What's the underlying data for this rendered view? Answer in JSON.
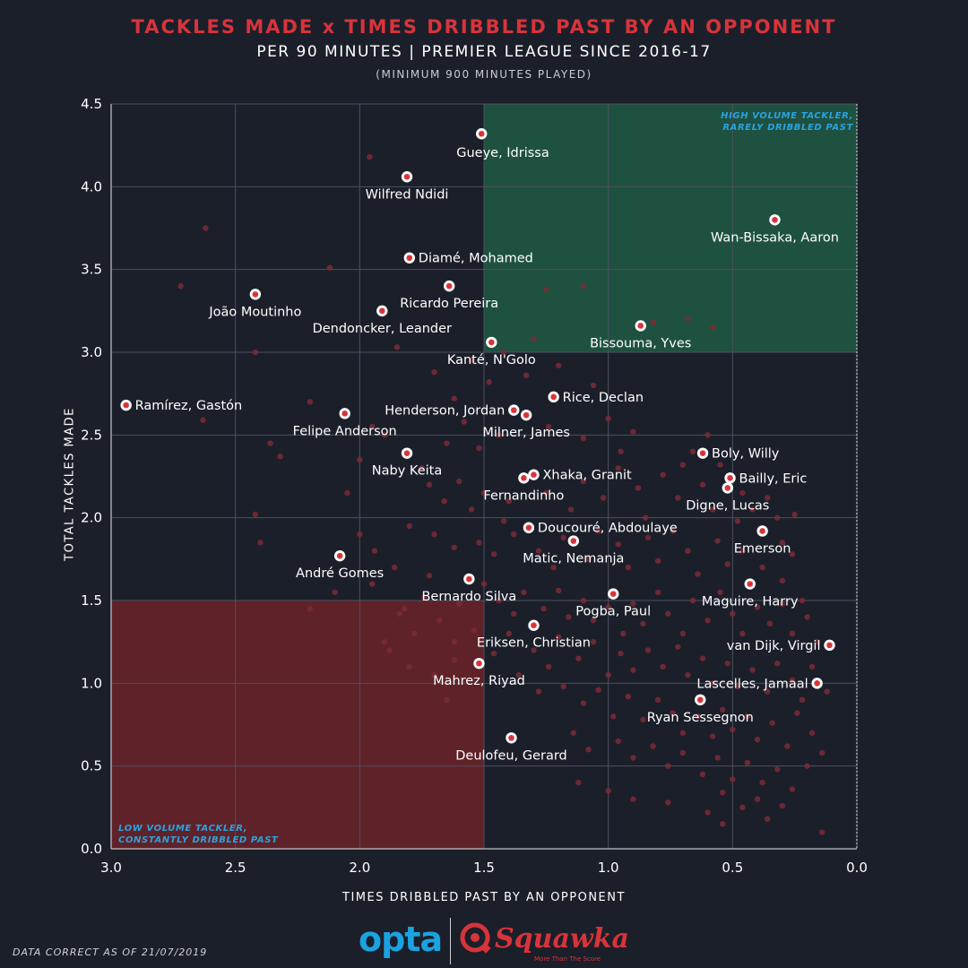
{
  "header": {
    "title": "TACKLES MADE x TIMES DRIBBLED PAST BY AN OPPONENT",
    "subtitle": "PER 90 MINUTES | PREMIER LEAGUE SINCE 2016-17",
    "note": "(MINIMUM 900 MINUTES PLAYED)"
  },
  "footer": {
    "note": "DATA CORRECT AS OF 21/07/2019",
    "logo_opta": "opta",
    "logo_squawka": "Squawka",
    "logo_squawka_tagline": "More Than The Score"
  },
  "colors": {
    "background": "#1b1f2a",
    "grid": "#4c5160",
    "highlight_point": "#d7343a",
    "background_point": "#7a2c36",
    "good_zone": "#1f5a44",
    "bad_zone": "#6b2329",
    "title": "#d7343a",
    "annotation": "#2aa3e0"
  },
  "chart_data": {
    "type": "scatter",
    "xlabel": "TIMES DRIBBLED PAST BY AN OPPONENT",
    "ylabel": "TOTAL TACKLES MADE",
    "xlim": [
      3.0,
      0.0
    ],
    "ylim": [
      0.0,
      4.5
    ],
    "x_reversed": true,
    "xticks": [
      "3.0",
      "2.5",
      "2.0",
      "1.5",
      "1.0",
      "0.5",
      "0.0"
    ],
    "yticks": [
      "0.0",
      "0.5",
      "1.0",
      "1.5",
      "2.0",
      "2.5",
      "3.0",
      "3.5",
      "4.0",
      "4.5"
    ],
    "grid": true,
    "zones": [
      {
        "name": "high",
        "label_lines": [
          "HIGH VOLUME TACKLER,",
          "RARELY DRIBBLED PAST"
        ],
        "x_range": [
          1.5,
          0.0
        ],
        "y_range": [
          3.0,
          4.5
        ],
        "color": "#1f5a44"
      },
      {
        "name": "low",
        "label_lines": [
          "LOW VOLUME TACKLER,",
          "CONSTANTLY DRIBBLED PAST"
        ],
        "x_range": [
          3.0,
          1.5
        ],
        "y_range": [
          0.0,
          1.5
        ],
        "color": "#6b2329"
      }
    ],
    "highlighted": [
      {
        "name": "Gueye, Idrissa",
        "x": 1.51,
        "y": 4.32,
        "anchor": "below-right"
      },
      {
        "name": "Wilfred Ndidi",
        "x": 1.81,
        "y": 4.06,
        "anchor": "below-center"
      },
      {
        "name": "Wan-Bissaka, Aaron",
        "x": 0.33,
        "y": 3.8,
        "anchor": "below-center"
      },
      {
        "name": "Diamé, Mohamed",
        "x": 1.8,
        "y": 3.57,
        "anchor": "right"
      },
      {
        "name": "Ricardo Pereira",
        "x": 1.64,
        "y": 3.4,
        "anchor": "below-center"
      },
      {
        "name": "João Moutinho",
        "x": 2.42,
        "y": 3.35,
        "anchor": "below-center"
      },
      {
        "name": "Dendoncker, Leander",
        "x": 1.91,
        "y": 3.25,
        "anchor": "below-center"
      },
      {
        "name": "Bissouma, Yves",
        "x": 0.87,
        "y": 3.16,
        "anchor": "below-center"
      },
      {
        "name": "Kanté, N'Golo",
        "x": 1.47,
        "y": 3.06,
        "anchor": "below-center"
      },
      {
        "name": "Rice, Declan",
        "x": 1.22,
        "y": 2.73,
        "anchor": "right"
      },
      {
        "name": "Ramírez, Gastón",
        "x": 2.94,
        "y": 2.68,
        "anchor": "right"
      },
      {
        "name": "Henderson, Jordan",
        "x": 1.38,
        "y": 2.65,
        "anchor": "left"
      },
      {
        "name": "Felipe Anderson",
        "x": 2.06,
        "y": 2.63,
        "anchor": "below-center"
      },
      {
        "name": "Milner, James",
        "x": 1.33,
        "y": 2.62,
        "anchor": "below-center"
      },
      {
        "name": "Boly, Willy",
        "x": 0.62,
        "y": 2.39,
        "anchor": "right"
      },
      {
        "name": "Naby Keita",
        "x": 1.81,
        "y": 2.39,
        "anchor": "below-center"
      },
      {
        "name": "Xhaka, Granit",
        "x": 1.3,
        "y": 2.26,
        "anchor": "right"
      },
      {
        "name": "Bailly, Eric",
        "x": 0.51,
        "y": 2.24,
        "anchor": "right"
      },
      {
        "name": "Fernandinho",
        "x": 1.34,
        "y": 2.24,
        "anchor": "below-center"
      },
      {
        "name": "Digne, Lucas",
        "x": 0.52,
        "y": 2.18,
        "anchor": "below-center"
      },
      {
        "name": "Doucouré, Abdoulaye",
        "x": 1.32,
        "y": 1.94,
        "anchor": "right"
      },
      {
        "name": "Emerson",
        "x": 0.38,
        "y": 1.92,
        "anchor": "below-center"
      },
      {
        "name": "Matic, Nemanja",
        "x": 1.14,
        "y": 1.86,
        "anchor": "below-center"
      },
      {
        "name": "André Gomes",
        "x": 2.08,
        "y": 1.77,
        "anchor": "below-center"
      },
      {
        "name": "Bernardo Silva",
        "x": 1.56,
        "y": 1.63,
        "anchor": "below-center"
      },
      {
        "name": "Maguire, Harry",
        "x": 0.43,
        "y": 1.6,
        "anchor": "below-center"
      },
      {
        "name": "Pogba, Paul",
        "x": 0.98,
        "y": 1.54,
        "anchor": "below-center"
      },
      {
        "name": "Eriksen, Christian",
        "x": 1.3,
        "y": 1.35,
        "anchor": "below-center"
      },
      {
        "name": "van Dijk, Virgil",
        "x": 0.11,
        "y": 1.23,
        "anchor": "left"
      },
      {
        "name": "Mahrez, Riyad",
        "x": 1.52,
        "y": 1.12,
        "anchor": "below-center"
      },
      {
        "name": "Lascelles, Jamaal",
        "x": 0.16,
        "y": 1.0,
        "anchor": "left"
      },
      {
        "name": "Ryan Sessegnon",
        "x": 0.63,
        "y": 0.9,
        "anchor": "below-center"
      },
      {
        "name": "Deulofeu, Gerard",
        "x": 1.39,
        "y": 0.67,
        "anchor": "below-center"
      }
    ],
    "others": [
      [
        2.62,
        3.75
      ],
      [
        2.72,
        3.4
      ],
      [
        2.12,
        3.51
      ],
      [
        1.96,
        4.18
      ],
      [
        1.1,
        3.4
      ],
      [
        1.25,
        3.38
      ],
      [
        0.82,
        3.18
      ],
      [
        0.68,
        3.2
      ],
      [
        0.58,
        3.15
      ],
      [
        1.42,
        3.0
      ],
      [
        1.3,
        3.08
      ],
      [
        1.55,
        2.95
      ],
      [
        1.7,
        2.88
      ],
      [
        1.85,
        3.03
      ],
      [
        1.62,
        2.72
      ],
      [
        1.48,
        2.82
      ],
      [
        1.33,
        2.86
      ],
      [
        1.2,
        2.92
      ],
      [
        1.06,
        2.8
      ],
      [
        1.58,
        2.58
      ],
      [
        1.44,
        2.5
      ],
      [
        1.52,
        2.42
      ],
      [
        1.24,
        2.55
      ],
      [
        1.1,
        2.48
      ],
      [
        1.0,
        2.6
      ],
      [
        0.95,
        2.4
      ],
      [
        0.9,
        2.52
      ],
      [
        2.42,
        3.0
      ],
      [
        2.2,
        2.7
      ],
      [
        2.36,
        2.45
      ],
      [
        2.32,
        2.37
      ],
      [
        2.63,
        2.59
      ],
      [
        1.95,
        2.55
      ],
      [
        2.0,
        2.35
      ],
      [
        1.9,
        2.5
      ],
      [
        1.75,
        2.3
      ],
      [
        1.65,
        2.45
      ],
      [
        1.72,
        2.2
      ],
      [
        1.6,
        2.22
      ],
      [
        1.66,
        2.1
      ],
      [
        1.5,
        2.15
      ],
      [
        1.4,
        2.1
      ],
      [
        1.55,
        2.05
      ],
      [
        1.42,
        1.98
      ],
      [
        1.25,
        2.15
      ],
      [
        1.15,
        2.05
      ],
      [
        1.1,
        2.22
      ],
      [
        1.02,
        2.12
      ],
      [
        0.96,
        2.3
      ],
      [
        0.88,
        2.18
      ],
      [
        0.85,
        2.0
      ],
      [
        0.78,
        2.26
      ],
      [
        0.72,
        2.12
      ],
      [
        0.7,
        2.32
      ],
      [
        0.62,
        2.2
      ],
      [
        0.58,
        2.05
      ],
      [
        0.66,
        2.4
      ],
      [
        0.6,
        2.5
      ],
      [
        0.55,
        2.32
      ],
      [
        0.46,
        2.15
      ],
      [
        0.42,
        2.05
      ],
      [
        0.48,
        1.98
      ],
      [
        0.36,
        2.12
      ],
      [
        0.32,
        2.0
      ],
      [
        0.3,
        1.85
      ],
      [
        0.25,
        2.02
      ],
      [
        2.05,
        2.15
      ],
      [
        2.42,
        2.02
      ],
      [
        2.0,
        1.9
      ],
      [
        1.94,
        1.8
      ],
      [
        1.86,
        1.7
      ],
      [
        1.8,
        1.95
      ],
      [
        1.7,
        1.9
      ],
      [
        1.62,
        1.82
      ],
      [
        1.52,
        1.85
      ],
      [
        1.46,
        1.78
      ],
      [
        1.38,
        1.9
      ],
      [
        1.28,
        1.8
      ],
      [
        1.22,
        1.7
      ],
      [
        1.18,
        1.88
      ],
      [
        1.08,
        1.75
      ],
      [
        1.04,
        1.92
      ],
      [
        0.96,
        1.84
      ],
      [
        0.92,
        1.7
      ],
      [
        0.84,
        1.88
      ],
      [
        0.8,
        1.74
      ],
      [
        0.74,
        1.92
      ],
      [
        0.68,
        1.8
      ],
      [
        0.64,
        1.66
      ],
      [
        0.56,
        1.86
      ],
      [
        0.52,
        1.72
      ],
      [
        0.46,
        1.8
      ],
      [
        0.38,
        1.7
      ],
      [
        0.3,
        1.62
      ],
      [
        0.26,
        1.78
      ],
      [
        0.22,
        1.5
      ],
      [
        2.1,
        1.55
      ],
      [
        1.95,
        1.6
      ],
      [
        1.82,
        1.45
      ],
      [
        1.74,
        1.52
      ],
      [
        1.68,
        1.38
      ],
      [
        1.6,
        1.48
      ],
      [
        1.5,
        1.6
      ],
      [
        1.44,
        1.5
      ],
      [
        1.38,
        1.42
      ],
      [
        1.34,
        1.55
      ],
      [
        1.26,
        1.45
      ],
      [
        1.2,
        1.56
      ],
      [
        1.16,
        1.4
      ],
      [
        1.1,
        1.5
      ],
      [
        1.06,
        1.38
      ],
      [
        1.0,
        1.46
      ],
      [
        0.94,
        1.3
      ],
      [
        0.9,
        1.48
      ],
      [
        0.86,
        1.36
      ],
      [
        0.8,
        1.55
      ],
      [
        0.76,
        1.42
      ],
      [
        0.7,
        1.3
      ],
      [
        0.66,
        1.5
      ],
      [
        0.6,
        1.38
      ],
      [
        0.55,
        1.55
      ],
      [
        0.5,
        1.42
      ],
      [
        0.46,
        1.3
      ],
      [
        0.4,
        1.46
      ],
      [
        0.35,
        1.36
      ],
      [
        0.3,
        1.48
      ],
      [
        0.26,
        1.3
      ],
      [
        0.2,
        1.4
      ],
      [
        0.16,
        1.25
      ],
      [
        1.78,
        1.3
      ],
      [
        1.84,
        1.42
      ],
      [
        1.62,
        1.25
      ],
      [
        1.54,
        1.32
      ],
      [
        1.46,
        1.18
      ],
      [
        1.4,
        1.3
      ],
      [
        1.3,
        1.2
      ],
      [
        1.24,
        1.1
      ],
      [
        1.2,
        1.28
      ],
      [
        1.12,
        1.15
      ],
      [
        1.06,
        1.25
      ],
      [
        1.0,
        1.05
      ],
      [
        0.95,
        1.18
      ],
      [
        0.9,
        1.08
      ],
      [
        0.84,
        1.2
      ],
      [
        0.78,
        1.1
      ],
      [
        0.72,
        1.22
      ],
      [
        0.68,
        1.05
      ],
      [
        0.62,
        1.15
      ],
      [
        0.58,
        1.0
      ],
      [
        0.52,
        1.12
      ],
      [
        0.48,
        0.98
      ],
      [
        0.42,
        1.08
      ],
      [
        0.36,
        0.95
      ],
      [
        0.32,
        1.12
      ],
      [
        0.26,
        1.02
      ],
      [
        0.22,
        0.9
      ],
      [
        0.18,
        1.1
      ],
      [
        0.12,
        0.95
      ],
      [
        1.36,
        1.05
      ],
      [
        1.28,
        0.95
      ],
      [
        1.18,
        0.98
      ],
      [
        1.1,
        0.88
      ],
      [
        1.04,
        0.96
      ],
      [
        0.98,
        0.8
      ],
      [
        0.92,
        0.92
      ],
      [
        0.86,
        0.78
      ],
      [
        0.8,
        0.9
      ],
      [
        0.74,
        0.82
      ],
      [
        0.7,
        0.7
      ],
      [
        0.64,
        0.8
      ],
      [
        0.58,
        0.68
      ],
      [
        0.54,
        0.84
      ],
      [
        0.5,
        0.72
      ],
      [
        0.44,
        0.8
      ],
      [
        0.4,
        0.66
      ],
      [
        0.34,
        0.76
      ],
      [
        0.28,
        0.62
      ],
      [
        0.24,
        0.82
      ],
      [
        0.18,
        0.7
      ],
      [
        0.14,
        0.58
      ],
      [
        1.14,
        0.7
      ],
      [
        1.08,
        0.6
      ],
      [
        0.96,
        0.65
      ],
      [
        0.9,
        0.55
      ],
      [
        0.82,
        0.62
      ],
      [
        0.76,
        0.5
      ],
      [
        0.7,
        0.58
      ],
      [
        0.62,
        0.45
      ],
      [
        0.56,
        0.55
      ],
      [
        0.5,
        0.42
      ],
      [
        0.44,
        0.52
      ],
      [
        0.38,
        0.4
      ],
      [
        0.32,
        0.48
      ],
      [
        0.26,
        0.36
      ],
      [
        0.2,
        0.5
      ],
      [
        1.12,
        0.4
      ],
      [
        1.0,
        0.35
      ],
      [
        0.9,
        0.3
      ],
      [
        0.76,
        0.28
      ],
      [
        0.6,
        0.22
      ],
      [
        0.54,
        0.34
      ],
      [
        0.46,
        0.25
      ],
      [
        0.4,
        0.3
      ],
      [
        0.36,
        0.18
      ],
      [
        0.3,
        0.26
      ],
      [
        0.14,
        0.1
      ],
      [
        0.54,
        0.15
      ],
      [
        1.8,
        1.1
      ],
      [
        1.7,
        1.05
      ],
      [
        1.65,
        0.9
      ],
      [
        1.88,
        1.2
      ],
      [
        1.62,
        1.14
      ],
      [
        2.2,
        1.45
      ],
      [
        2.4,
        1.85
      ],
      [
        1.9,
        1.25
      ],
      [
        1.72,
        1.65
      ]
    ]
  }
}
